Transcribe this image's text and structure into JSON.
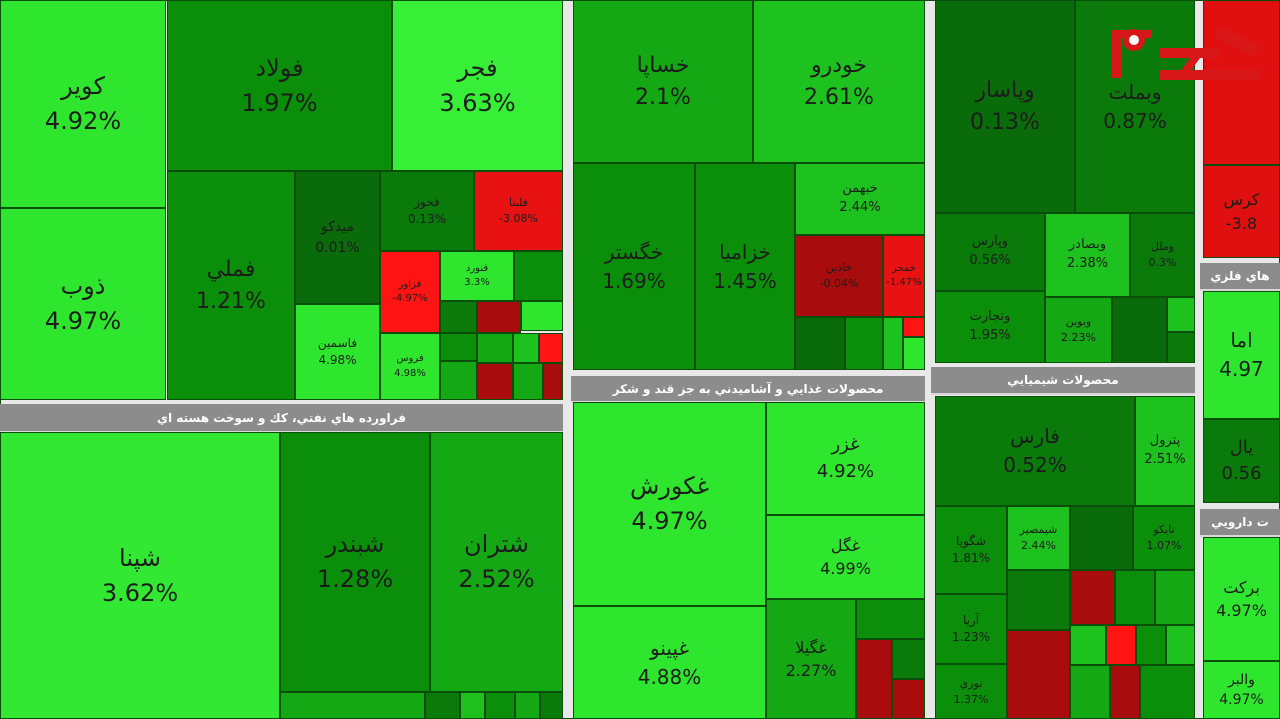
{
  "sections": [
    {
      "tiles": [
        {
          "label": "كوير",
          "change": "4.92%"
        },
        {
          "label": "ذوب",
          "change": "4.97%"
        },
        {
          "label": "فولاد",
          "change": "1.97%"
        },
        {
          "label": "فجر",
          "change": "3.63%"
        },
        {
          "label": "فملي",
          "change": "1.21%"
        },
        {
          "label": "ميدكو",
          "change": "0.01%"
        },
        {
          "label": "فخوز",
          "change": "0.13%"
        },
        {
          "label": "فلبنا",
          "change": "-3.08%"
        },
        {
          "label": "فاسمين",
          "change": "4.98%"
        },
        {
          "label": "فزاور",
          "change": "-4.97%"
        },
        {
          "label": "فنورد",
          "change": "3.3%"
        },
        {
          "label": "فروس",
          "change": "4.98%"
        }
      ]
    },
    {
      "title": "فراورده هاي نفتي، كك و سوخت هسته اي",
      "tiles": [
        {
          "label": "شپنا",
          "change": "3.62%"
        },
        {
          "label": "شبندر",
          "change": "1.28%"
        },
        {
          "label": "شتران",
          "change": "2.52%"
        }
      ]
    },
    {
      "tiles": [
        {
          "label": "خساپا",
          "change": "2.1%"
        },
        {
          "label": "خودرو",
          "change": "2.61%"
        },
        {
          "label": "خگستر",
          "change": "1.69%"
        },
        {
          "label": "خزاميا",
          "change": "1.45%"
        },
        {
          "label": "خبهمن",
          "change": "2.44%"
        },
        {
          "label": "خاذين",
          "change": "-0.04%"
        },
        {
          "label": "خمحر",
          "change": "-1.47%"
        }
      ]
    },
    {
      "title": "محصولات غذايي و آشاميدني به جز قند و شكر",
      "tiles": [
        {
          "label": "غكورش",
          "change": "4.97%"
        },
        {
          "label": "غپينو",
          "change": "4.88%"
        },
        {
          "label": "غزر",
          "change": "4.92%"
        },
        {
          "label": "غگل",
          "change": "4.99%"
        },
        {
          "label": "غگيلا",
          "change": "2.27%"
        }
      ]
    },
    {
      "tiles": [
        {
          "label": "وپاسار",
          "change": "0.13%"
        },
        {
          "label": "وبملت",
          "change": "0.87%"
        },
        {
          "label": "وپارس",
          "change": "0.56%"
        },
        {
          "label": "وبصادر",
          "change": "2.38%"
        },
        {
          "label": "وملل",
          "change": "0.3%"
        },
        {
          "label": "وتجارت",
          "change": "1.95%"
        },
        {
          "label": "وبوين",
          "change": "2.23%"
        }
      ]
    },
    {
      "title": "محصولات شيميايي",
      "tiles": [
        {
          "label": "فارس",
          "change": "0.52%"
        },
        {
          "label": "پترول",
          "change": "2.51%"
        },
        {
          "label": "شگويا",
          "change": "1.81%"
        },
        {
          "label": "شيمصير",
          "change": "2.44%"
        },
        {
          "label": "نايكو",
          "change": "1.07%"
        },
        {
          "label": "آريا",
          "change": "1.23%"
        },
        {
          "label": "نوري",
          "change": "1.37%"
        }
      ]
    },
    {
      "tiles": [
        {
          "label": "كرس",
          "change": "-3.8"
        }
      ]
    },
    {
      "title": "هاي فلزي",
      "tiles": [
        {
          "label": "اما",
          "change": "4.97"
        },
        {
          "label": "يال",
          "change": "0.56"
        }
      ]
    },
    {
      "title": "ت دارويي",
      "tiles": [
        {
          "label": "بركت",
          "change": "4.97%"
        },
        {
          "label": "والبر",
          "change": "4.97%"
        }
      ]
    }
  ]
}
